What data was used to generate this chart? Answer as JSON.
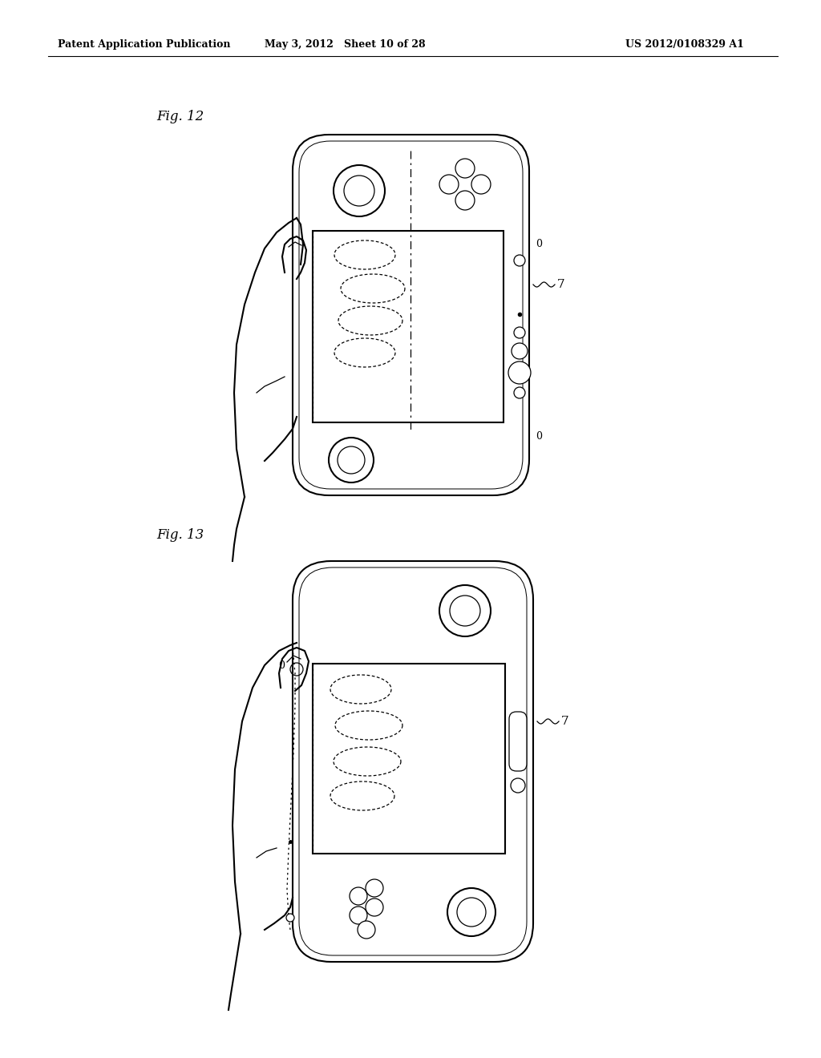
{
  "background_color": "#ffffff",
  "header_left": "Patent Application Publication",
  "header_mid": "May 3, 2012   Sheet 10 of 28",
  "header_right": "US 2012/0108329 A1",
  "fig12_label": "Fig. 12",
  "fig13_label": "Fig. 13",
  "line_color": "#000000",
  "lw": 1.5,
  "lw_thin": 0.9,
  "lw_med": 1.2
}
